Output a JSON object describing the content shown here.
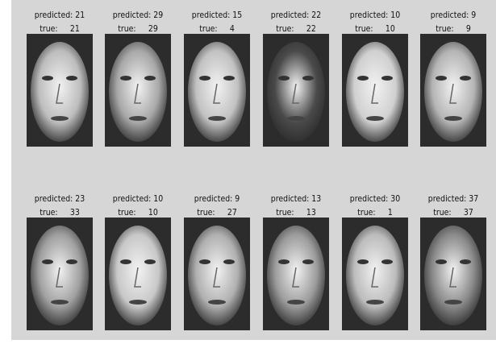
{
  "panels": [
    {
      "predicted_label": "predicted:",
      "predicted": 21,
      "true_label": "true:",
      "true": 21
    },
    {
      "predicted_label": "predicted:",
      "predicted": 29,
      "true_label": "true:",
      "true": 29
    },
    {
      "predicted_label": "predicted:",
      "predicted": 15,
      "true_label": "true:",
      "true": 4
    },
    {
      "predicted_label": "predicted:",
      "predicted": 22,
      "true_label": "true:",
      "true": 22
    },
    {
      "predicted_label": "predicted:",
      "predicted": 10,
      "true_label": "true:",
      "true": 10
    },
    {
      "predicted_label": "predicted:",
      "predicted": 9,
      "true_label": "true:",
      "true": 9
    },
    {
      "predicted_label": "predicted:",
      "predicted": 23,
      "true_label": "true:",
      "true": 33
    },
    {
      "predicted_label": "predicted:",
      "predicted": 10,
      "true_label": "true:",
      "true": 10
    },
    {
      "predicted_label": "predicted:",
      "predicted": 9,
      "true_label": "true:",
      "true": 27
    },
    {
      "predicted_label": "predicted:",
      "predicted": 13,
      "true_label": "true:",
      "true": 13
    },
    {
      "predicted_label": "predicted:",
      "predicted": 30,
      "true_label": "true:",
      "true": 1
    },
    {
      "predicted_label": "predicted:",
      "predicted": 37,
      "true_label": "true:",
      "true": 37
    }
  ]
}
